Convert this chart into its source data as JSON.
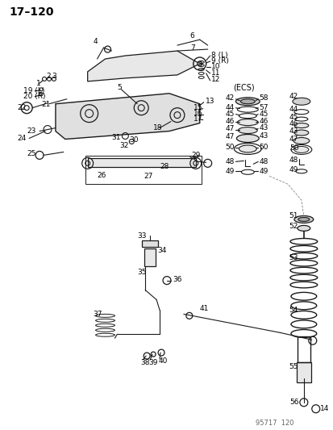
{
  "title": "17–120",
  "bg_color": "#ffffff",
  "watermark": "95717  120",
  "ecs_label": "(ECS)",
  "label_8": "8 (L)",
  "label_9": "9 (R)",
  "label_19": "19 (L)",
  "label_20": "20 (R)",
  "line_color": "#1a1a1a",
  "text_color": "#000000",
  "font_size_title": 10,
  "font_size_labels": 6.5,
  "font_size_watermark": 6
}
